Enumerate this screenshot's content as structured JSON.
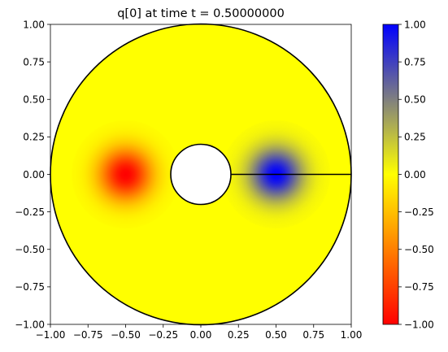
{
  "chart_data": {
    "type": "heatmap",
    "title": "q[0] at time t =     0.50000000",
    "xlabel": "",
    "ylabel": "",
    "xlim": [
      -1.0,
      1.0
    ],
    "ylim": [
      -1.0,
      1.0
    ],
    "x_ticks": [
      "−1.00",
      "−0.75",
      "−0.50",
      "−0.25",
      "0.00",
      "0.25",
      "0.50",
      "0.75",
      "1.00"
    ],
    "x_tick_values": [
      -1.0,
      -0.75,
      -0.5,
      -0.25,
      0.0,
      0.25,
      0.5,
      0.75,
      1.0
    ],
    "y_ticks": [
      "−1.00",
      "−0.75",
      "−0.50",
      "−0.25",
      "0.00",
      "0.25",
      "0.50",
      "0.75",
      "1.00"
    ],
    "y_tick_values": [
      -1.0,
      -0.75,
      -0.5,
      -0.25,
      0.0,
      0.25,
      0.5,
      0.75,
      1.0
    ],
    "domain": {
      "outer_radius": 1.0,
      "inner_radius": 0.2,
      "cut_line": {
        "x_start": 0.2,
        "x_end": 1.0,
        "y": 0.0
      }
    },
    "features": [
      {
        "x": -0.5,
        "y": 0.0,
        "value": -1.0,
        "spread": 0.12
      },
      {
        "x": 0.5,
        "y": 0.0,
        "value": 1.0,
        "spread": 0.12
      }
    ],
    "colorbar": {
      "range": [
        -1.0,
        1.0
      ],
      "tick_values": [
        -1.0,
        -0.75,
        -0.5,
        -0.25,
        0.0,
        0.25,
        0.5,
        0.75,
        1.0
      ],
      "tick_labels": [
        "−1.00",
        "−0.75",
        "−0.50",
        "−0.25",
        "0.00",
        "0.25",
        "0.50",
        "0.75",
        "1.00"
      ],
      "colors": {
        "low": "#ff0000",
        "mid": "#ffff00",
        "high": "#0000ff"
      }
    },
    "grid": false,
    "legend": "none"
  }
}
